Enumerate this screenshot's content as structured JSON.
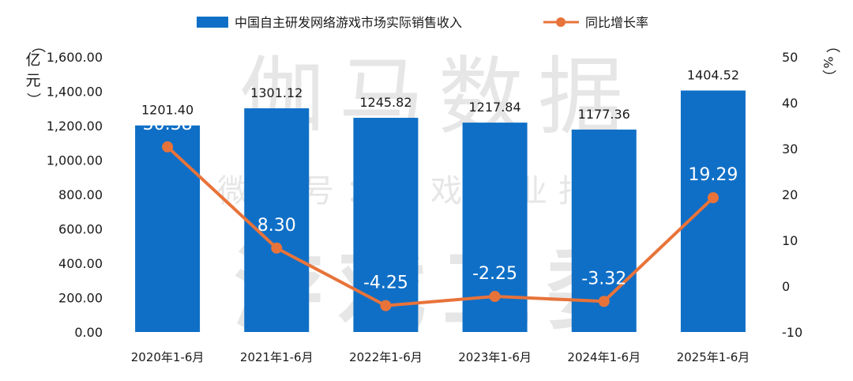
{
  "watermark": {
    "line1": "伽马数据",
    "line2": "微信号：游戏产业报告",
    "line3": "游戏工委"
  },
  "chart_data": {
    "type": "bar",
    "categories": [
      "2020年1-6月",
      "2021年1-6月",
      "2022年1-6月",
      "2023年1-6月",
      "2024年1-6月",
      "2025年1-6月"
    ],
    "series": [
      {
        "name": "中国自主研发网络游戏市场实际销售收入",
        "type": "bar",
        "axis": "left",
        "values": [
          1201.4,
          1301.12,
          1245.82,
          1217.84,
          1177.36,
          1404.52
        ],
        "labels": [
          "1201.40",
          "1301.12",
          "1245.82",
          "1217.84",
          "1177.36",
          "1404.52"
        ]
      },
      {
        "name": "同比增长率",
        "type": "line",
        "axis": "right",
        "values": [
          30.38,
          8.3,
          -4.25,
          -2.25,
          -3.32,
          19.29
        ],
        "labels": [
          "30.38",
          "8.30",
          "-4.25",
          "-2.25",
          "-3.32",
          "19.29"
        ]
      }
    ],
    "ylabel_left": "亿元",
    "ylabel_right": "%",
    "ylim_left": [
      0,
      1600
    ],
    "ylim_right": [
      -10,
      50
    ],
    "yticks_left": [
      "1,600.00",
      "1,400.00",
      "1,200.00",
      "1,000.00",
      "800.00",
      "600.00",
      "400.00",
      "200.00",
      "0.00"
    ],
    "yticks_left_values": [
      1600,
      1400,
      1200,
      1000,
      800,
      600,
      400,
      200,
      0
    ],
    "yticks_right": [
      "50",
      "40",
      "30",
      "20",
      "10",
      "0",
      "-10"
    ],
    "yticks_right_values": [
      50,
      40,
      30,
      20,
      10,
      0,
      -10
    ],
    "legend_position": "top",
    "grid": false,
    "colors": {
      "bar": "#0F6FC6",
      "line": "#E8733A",
      "text": "#1a1a1a",
      "inbar_label": "#ffffff",
      "watermark": "#d2d2d2"
    }
  }
}
